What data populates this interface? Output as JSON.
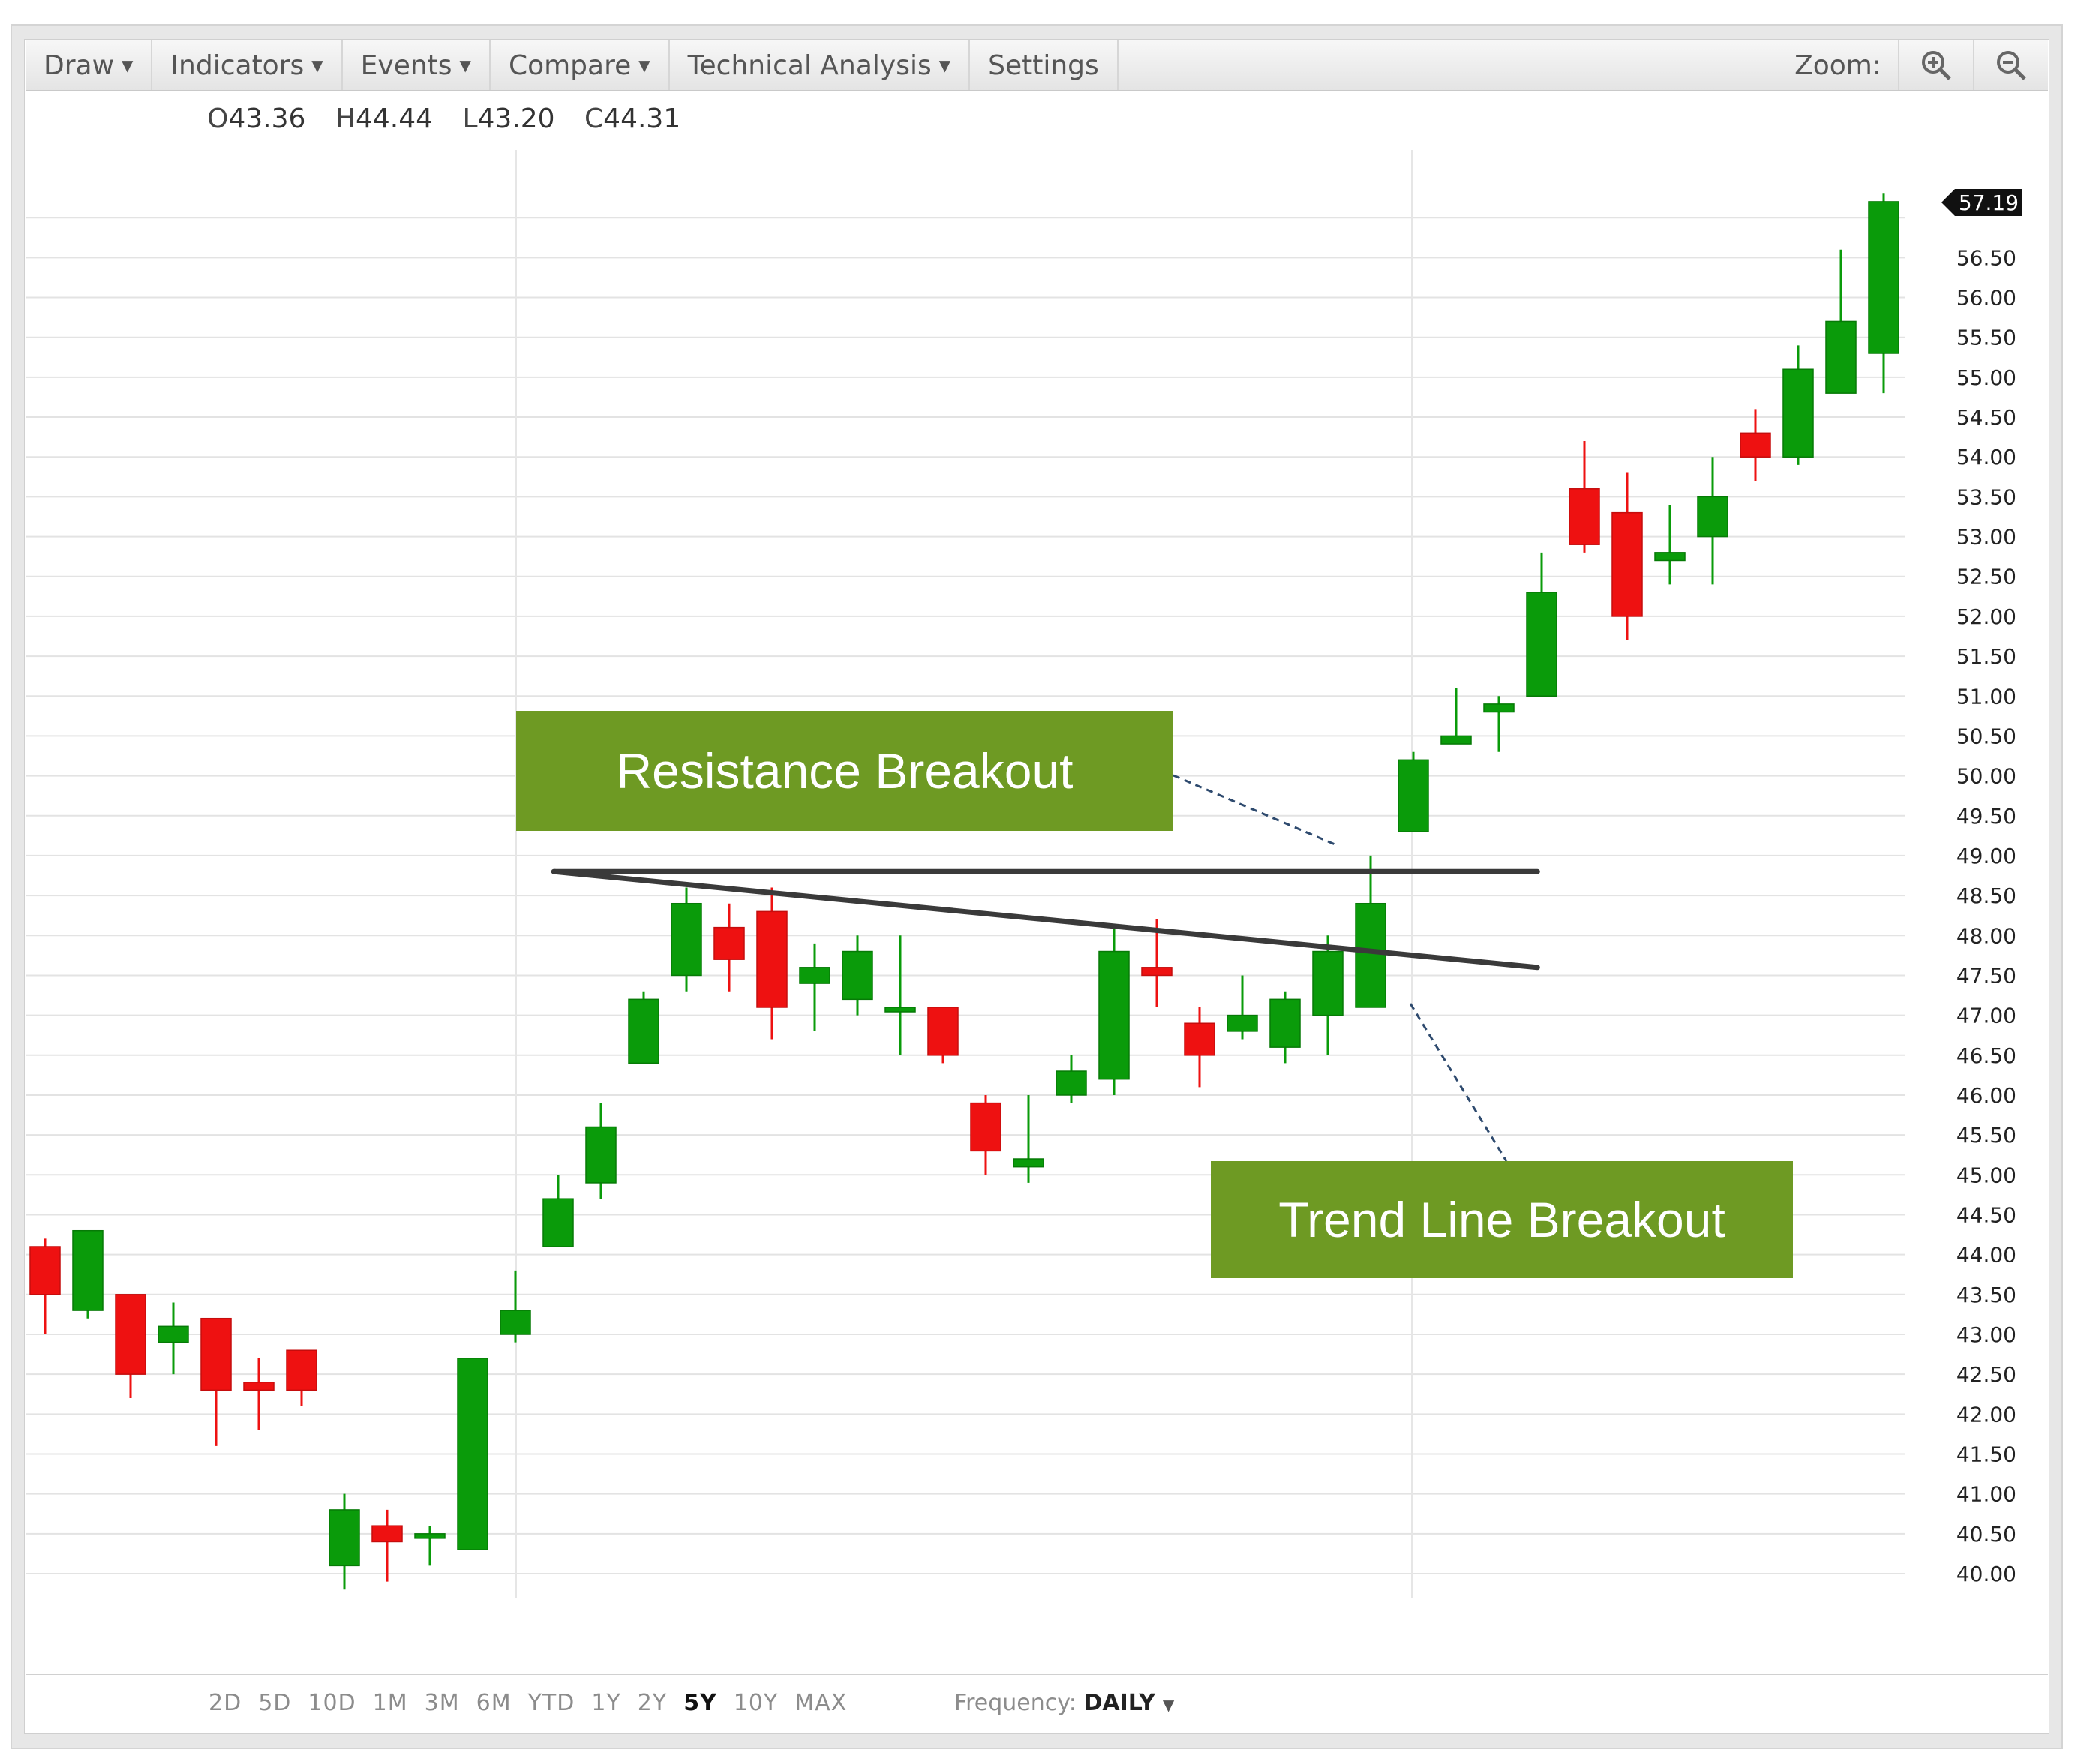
{
  "toolbar": {
    "menus": [
      {
        "label": "Draw"
      },
      {
        "label": "Indicators"
      },
      {
        "label": "Events"
      },
      {
        "label": "Compare"
      },
      {
        "label": "Technical Analysis"
      }
    ],
    "settings_label": "Settings",
    "zoom_label": "Zoom:",
    "zoom_in_icon": "zoom-in-icon",
    "zoom_out_icon": "zoom-out-icon"
  },
  "ohlc": {
    "open_label": "O",
    "open": "43.36",
    "high_label": "H",
    "high": "44.44",
    "low_label": "L",
    "low": "43.20",
    "close_label": "C",
    "close": "44.31"
  },
  "annotations": {
    "resistance": "Resistance Breakout",
    "trend": "Trend Line Breakout"
  },
  "colors": {
    "up": "#0a9b0a",
    "down": "#ee1111",
    "callout": "#6e9a23",
    "line": "#3a3a3a"
  },
  "bottom": {
    "ranges": [
      "2D",
      "5D",
      "10D",
      "1M",
      "3M",
      "6M",
      "YTD",
      "1Y",
      "2Y",
      "5Y",
      "10Y",
      "MAX"
    ],
    "active_range": "5Y",
    "frequency_label": "Frequency:",
    "frequency_value": "DAILY"
  },
  "chart_data": {
    "type": "candlestick",
    "y_axis": {
      "ylim": [
        39.9,
        57.6
      ],
      "ticks": [
        "40.00",
        "40.50",
        "41.00",
        "41.50",
        "42.00",
        "42.50",
        "43.00",
        "43.50",
        "44.00",
        "44.50",
        "45.00",
        "45.50",
        "46.00",
        "46.50",
        "47.00",
        "47.50",
        "48.00",
        "48.50",
        "49.00",
        "49.50",
        "50.00",
        "50.50",
        "51.00",
        "51.50",
        "52.00",
        "52.50",
        "53.00",
        "53.50",
        "54.00",
        "54.50",
        "55.00",
        "55.50",
        "56.00",
        "56.50"
      ],
      "last_price_label": "57.19",
      "grid": true,
      "position": "right"
    },
    "candles": [
      {
        "o": 44.1,
        "h": 44.2,
        "l": 43.0,
        "c": 43.5
      },
      {
        "o": 43.3,
        "h": 44.3,
        "l": 43.2,
        "c": 44.3
      },
      {
        "o": 43.5,
        "h": 43.5,
        "l": 42.2,
        "c": 42.5
      },
      {
        "o": 42.9,
        "h": 43.4,
        "l": 42.5,
        "c": 43.1
      },
      {
        "o": 43.2,
        "h": 43.2,
        "l": 41.6,
        "c": 42.3
      },
      {
        "o": 42.4,
        "h": 42.7,
        "l": 41.8,
        "c": 42.3
      },
      {
        "o": 42.8,
        "h": 42.8,
        "l": 42.1,
        "c": 42.3
      },
      {
        "o": 40.1,
        "h": 41.0,
        "l": 39.8,
        "c": 40.8
      },
      {
        "o": 40.6,
        "h": 40.8,
        "l": 39.9,
        "c": 40.4
      },
      {
        "o": 40.5,
        "h": 40.6,
        "l": 40.1,
        "c": 40.5
      },
      {
        "o": 40.3,
        "h": 42.7,
        "l": 40.3,
        "c": 42.7
      },
      {
        "o": 43.0,
        "h": 43.8,
        "l": 42.9,
        "c": 43.3
      },
      {
        "o": 44.1,
        "h": 45.0,
        "l": 44.1,
        "c": 44.7
      },
      {
        "o": 44.9,
        "h": 45.9,
        "l": 44.7,
        "c": 45.6
      },
      {
        "o": 46.4,
        "h": 47.3,
        "l": 46.4,
        "c": 47.2
      },
      {
        "o": 47.5,
        "h": 48.6,
        "l": 47.3,
        "c": 48.4
      },
      {
        "o": 48.1,
        "h": 48.4,
        "l": 47.3,
        "c": 47.7
      },
      {
        "o": 48.3,
        "h": 48.6,
        "l": 46.7,
        "c": 47.1
      },
      {
        "o": 47.4,
        "h": 47.9,
        "l": 46.8,
        "c": 47.6
      },
      {
        "o": 47.2,
        "h": 48.0,
        "l": 47.0,
        "c": 47.8
      },
      {
        "o": 47.1,
        "h": 48.0,
        "l": 46.5,
        "c": 47.1
      },
      {
        "o": 47.1,
        "h": 47.1,
        "l": 46.4,
        "c": 46.5
      },
      {
        "o": 45.9,
        "h": 46.0,
        "l": 45.0,
        "c": 45.3
      },
      {
        "o": 45.1,
        "h": 46.0,
        "l": 44.9,
        "c": 45.2
      },
      {
        "o": 46.0,
        "h": 46.5,
        "l": 45.9,
        "c": 46.3
      },
      {
        "o": 46.2,
        "h": 48.1,
        "l": 46.0,
        "c": 47.8
      },
      {
        "o": 47.6,
        "h": 48.2,
        "l": 47.1,
        "c": 47.5
      },
      {
        "o": 46.9,
        "h": 47.1,
        "l": 46.1,
        "c": 46.5
      },
      {
        "o": 46.8,
        "h": 47.5,
        "l": 46.7,
        "c": 47.0
      },
      {
        "o": 46.6,
        "h": 47.3,
        "l": 46.4,
        "c": 47.2
      },
      {
        "o": 47.0,
        "h": 48.0,
        "l": 46.5,
        "c": 47.8
      },
      {
        "o": 47.1,
        "h": 49.0,
        "l": 47.1,
        "c": 48.4
      },
      {
        "o": 49.3,
        "h": 50.3,
        "l": 49.3,
        "c": 50.2
      },
      {
        "o": 50.4,
        "h": 51.1,
        "l": 50.4,
        "c": 50.5
      },
      {
        "o": 50.8,
        "h": 51.0,
        "l": 50.3,
        "c": 50.9
      },
      {
        "o": 51.0,
        "h": 52.8,
        "l": 51.0,
        "c": 52.3
      },
      {
        "o": 53.6,
        "h": 54.2,
        "l": 52.8,
        "c": 52.9
      },
      {
        "o": 53.3,
        "h": 53.8,
        "l": 51.7,
        "c": 52.0
      },
      {
        "o": 52.7,
        "h": 53.4,
        "l": 52.4,
        "c": 52.8
      },
      {
        "o": 53.0,
        "h": 54.0,
        "l": 52.4,
        "c": 53.5
      },
      {
        "o": 54.3,
        "h": 54.6,
        "l": 53.7,
        "c": 54.0
      },
      {
        "o": 54.0,
        "h": 55.4,
        "l": 53.9,
        "c": 55.1
      },
      {
        "o": 54.8,
        "h": 56.6,
        "l": 54.8,
        "c": 55.7
      },
      {
        "o": 55.3,
        "h": 57.3,
        "l": 54.8,
        "c": 57.2
      }
    ],
    "lines": [
      {
        "name": "resistance",
        "from": {
          "i": 11.9,
          "y": 48.8
        },
        "to": {
          "i": 34.9,
          "y": 48.8
        }
      },
      {
        "name": "trend",
        "from": {
          "i": 11.9,
          "y": 48.8
        },
        "to": {
          "i": 34.9,
          "y": 47.6
        }
      }
    ]
  }
}
